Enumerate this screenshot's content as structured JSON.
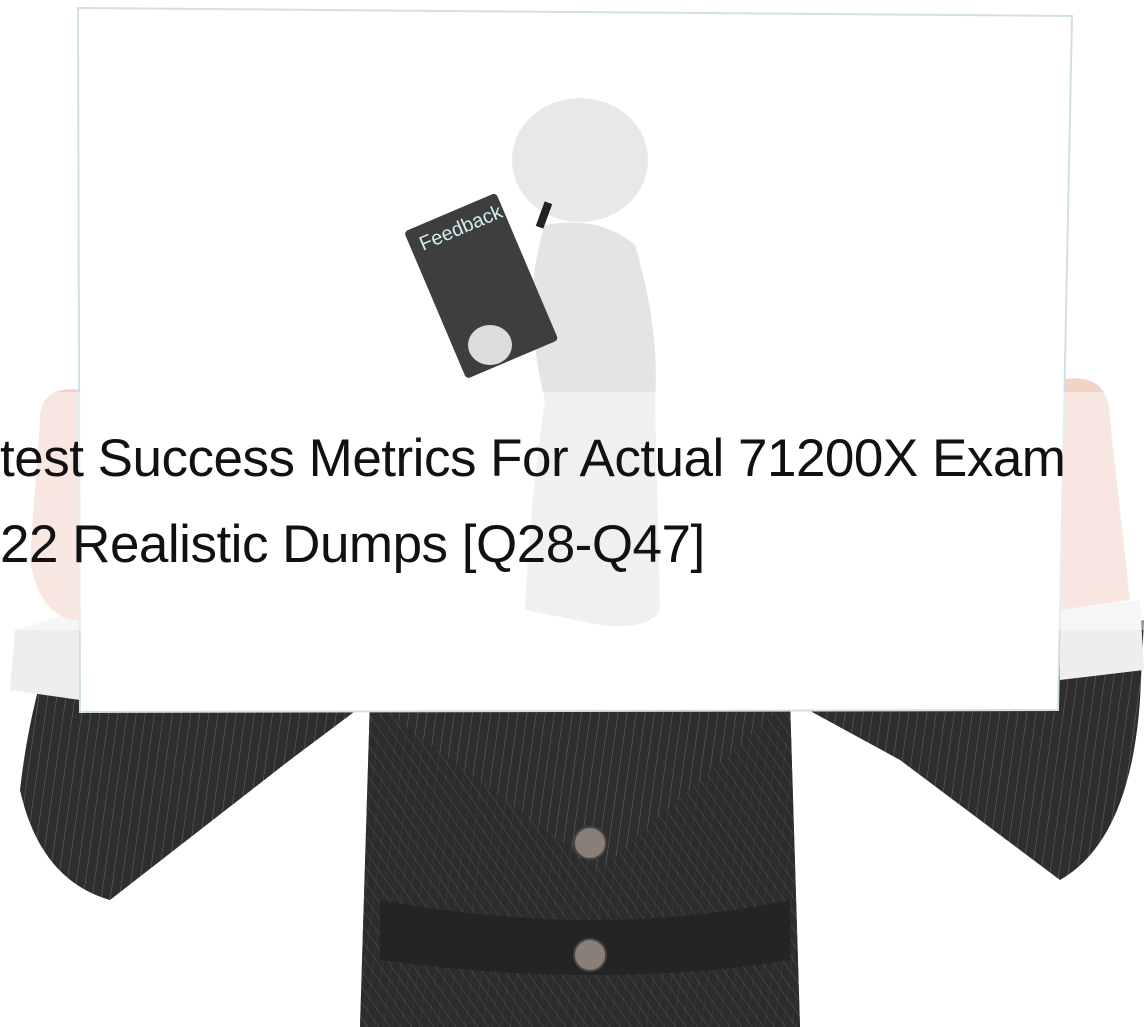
{
  "hero": {
    "sign_text": "Feedback",
    "title_lines": [
      "test Success Metrics For Actual 71200X Exam",
      "22 Realistic Dumps [Q28-Q47]"
    ]
  }
}
